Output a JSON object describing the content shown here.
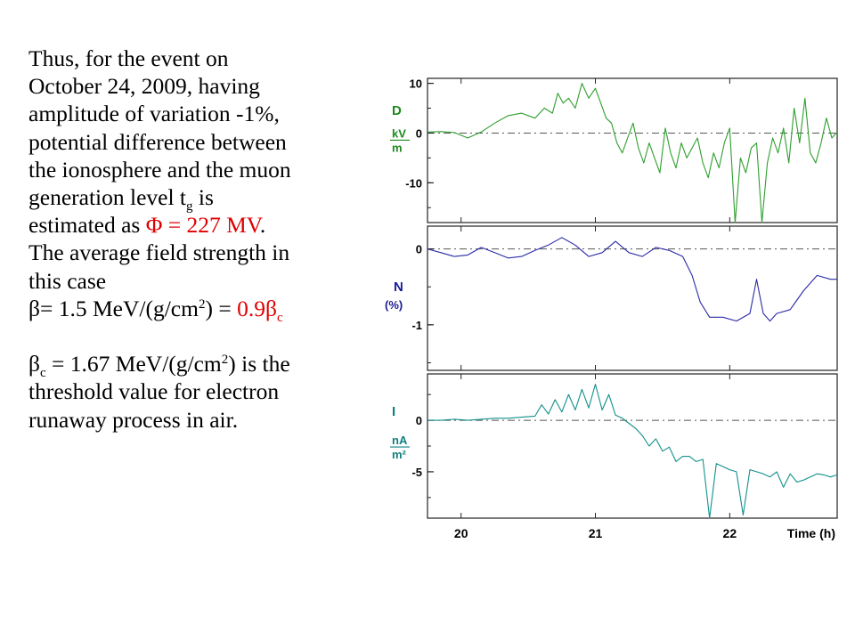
{
  "text": {
    "line1": "Thus, for the event on",
    "line2": "October 24, 2009, having",
    "line3": "amplitude of variation -1%,",
    "line4": "potential difference between",
    "line5": "the ionosphere and the muon",
    "line6_pre": "generation level t",
    "line6_sub": "g",
    "line6_post": " is",
    "line7_pre": "estimated as ",
    "line7_red": "Φ = 227 MV",
    "line7_post": ".",
    "line8": "The average field strength in",
    "line9": "this case",
    "line10_pre": "β= 1.5 MeV/(g/cm",
    "line10_sup": "2",
    "line10_mid": ") = ",
    "line10_red": "0.9β",
    "line10_red_sub": "c",
    "line11_pre": "β",
    "line11_sub": "c",
    "line11_mid": " = 1.67 MeV/(g/cm",
    "line11_sup": "2",
    "line11_post": ") is the",
    "line12": "threshold value for electron",
    "line13": "runaway process in air."
  },
  "colors": {
    "text": "#000000",
    "highlight": "#e00000",
    "panel_D": "#2e9e2e",
    "panel_N": "#2a2aa8",
    "panel_I": "#12908c",
    "label_D": "#1e8a1e",
    "label_N": "#1c1c96",
    "label_I": "#0f8080"
  },
  "chart_data": {
    "type": "line",
    "x_axis": {
      "label": "Time (h)",
      "ticks": [
        "20",
        "21",
        "22"
      ],
      "tick_values": [
        20,
        21,
        22
      ],
      "range": [
        19.75,
        22.8
      ]
    },
    "panels": [
      {
        "name_label": "D",
        "unit_num": "kV",
        "unit_den": "m",
        "ticks": [
          "10",
          "0",
          "-10"
        ],
        "tick_values": [
          10,
          0,
          -10
        ],
        "range": [
          -18,
          11
        ],
        "baseline": 0,
        "color_key": "panel_D",
        "x": [
          19.75,
          19.85,
          19.95,
          20.05,
          20.15,
          20.25,
          20.35,
          20.45,
          20.55,
          20.62,
          20.68,
          20.72,
          20.76,
          20.8,
          20.85,
          20.9,
          20.95,
          21.0,
          21.04,
          21.08,
          21.12,
          21.16,
          21.2,
          21.24,
          21.28,
          21.32,
          21.36,
          21.4,
          21.44,
          21.48,
          21.52,
          21.56,
          21.6,
          21.64,
          21.68,
          21.72,
          21.76,
          21.8,
          21.84,
          21.88,
          21.92,
          21.96,
          22.0,
          22.04,
          22.08,
          22.12,
          22.16,
          22.2,
          22.24,
          22.28,
          22.32,
          22.36,
          22.4,
          22.44,
          22.48,
          22.52,
          22.56,
          22.6,
          22.64,
          22.68,
          22.72,
          22.76,
          22.8
        ],
        "values": [
          0.2,
          0.3,
          0.1,
          -1,
          0.2,
          2,
          3.5,
          4,
          3,
          5,
          4,
          8,
          6,
          7,
          5,
          10,
          7,
          9,
          6,
          3,
          2,
          -2,
          -4,
          -1,
          2,
          -3,
          -6,
          -2,
          -5,
          -8,
          1,
          -4,
          -7,
          -2,
          -5,
          -3,
          -1,
          -6,
          -9,
          -4,
          -7,
          -2,
          1,
          -18,
          -5,
          -8,
          -3,
          -2,
          -18,
          -6,
          -1,
          -4,
          1,
          -6,
          5,
          -2,
          7,
          -4,
          -6,
          -2,
          3,
          -1,
          0.2
        ]
      },
      {
        "name_label": "N",
        "unit_label": "(%)",
        "ticks": [
          "0",
          "-1"
        ],
        "tick_values": [
          0,
          -1
        ],
        "range": [
          -1.6,
          0.3
        ],
        "baseline": 0,
        "color_key": "panel_N",
        "x": [
          19.75,
          19.85,
          19.95,
          20.05,
          20.15,
          20.25,
          20.35,
          20.45,
          20.55,
          20.65,
          20.75,
          20.85,
          20.95,
          21.05,
          21.15,
          21.25,
          21.35,
          21.45,
          21.55,
          21.65,
          21.72,
          21.78,
          21.85,
          21.95,
          22.05,
          22.15,
          22.2,
          22.25,
          22.3,
          22.35,
          22.45,
          22.55,
          22.65,
          22.75,
          22.8
        ],
        "values": [
          0,
          -0.05,
          -0.1,
          -0.08,
          0.02,
          -0.05,
          -0.12,
          -0.1,
          -0.02,
          0.05,
          0.15,
          0.05,
          -0.1,
          -0.05,
          0.1,
          -0.05,
          -0.1,
          0.02,
          -0.02,
          -0.1,
          -0.35,
          -0.7,
          -0.9,
          -0.9,
          -0.95,
          -0.85,
          -0.4,
          -0.85,
          -0.95,
          -0.85,
          -0.8,
          -0.55,
          -0.35,
          -0.4,
          -0.4
        ]
      },
      {
        "name_label": "I",
        "unit_num": "nA",
        "unit_den": "m²",
        "ticks": [
          "0",
          "-5"
        ],
        "tick_values": [
          0,
          -5
        ],
        "range": [
          -9.5,
          4.5
        ],
        "baseline": 0,
        "color_key": "panel_I",
        "x": [
          19.75,
          19.85,
          19.95,
          20.05,
          20.15,
          20.25,
          20.35,
          20.45,
          20.55,
          20.6,
          20.65,
          20.7,
          20.75,
          20.8,
          20.85,
          20.9,
          20.95,
          21.0,
          21.05,
          21.1,
          21.15,
          21.2,
          21.25,
          21.3,
          21.35,
          21.4,
          21.45,
          21.5,
          21.55,
          21.6,
          21.65,
          21.7,
          21.75,
          21.8,
          21.85,
          21.9,
          21.95,
          22.0,
          22.05,
          22.1,
          22.15,
          22.2,
          22.25,
          22.3,
          22.35,
          22.4,
          22.45,
          22.5,
          22.55,
          22.6,
          22.65,
          22.7,
          22.75,
          22.8
        ],
        "values": [
          0,
          0,
          0.1,
          0,
          0.1,
          0.2,
          0.2,
          0.3,
          0.4,
          1.5,
          0.6,
          2,
          0.8,
          2.5,
          1,
          3,
          1.2,
          3.5,
          1,
          2.5,
          0.5,
          0.2,
          -0.3,
          -0.8,
          -1.5,
          -2.5,
          -1.8,
          -3,
          -2.6,
          -4,
          -3.5,
          -3.5,
          -4,
          -3.8,
          -9.5,
          -4.2,
          -4.5,
          -4.8,
          -5,
          -9.2,
          -4.8,
          -5,
          -5.2,
          -5.5,
          -5,
          -6.5,
          -5.2,
          -6,
          -5.8,
          -5.5,
          -5.2,
          -5.3,
          -5.5,
          -5.3
        ]
      }
    ]
  }
}
